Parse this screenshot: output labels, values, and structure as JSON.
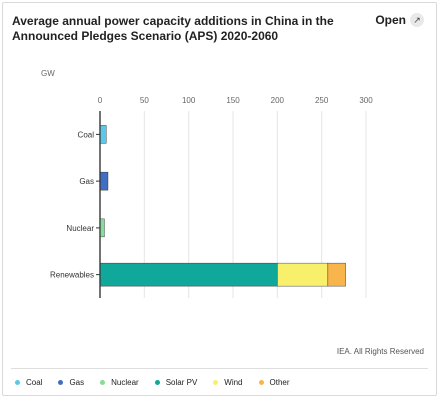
{
  "header": {
    "title": "Average annual power capacity additions in China in the Announced Pledges Scenario (APS) 2020-2060",
    "open_label": "Open",
    "open_icon": "external-link-icon"
  },
  "footer": {
    "credit": "IEA. All Rights Reserved"
  },
  "legend": [
    {
      "name": "Coal",
      "color": "#5bc8e8"
    },
    {
      "name": "Gas",
      "color": "#3f6fc2"
    },
    {
      "name": "Nuclear",
      "color": "#86dd9a"
    },
    {
      "name": "Solar PV",
      "color": "#10a89a"
    },
    {
      "name": "Wind",
      "color": "#f8ef6b"
    },
    {
      "name": "Other",
      "color": "#f7b54b"
    }
  ],
  "chart_data": {
    "type": "bar",
    "orientation": "horizontal",
    "stacked": true,
    "title": "Average annual power capacity additions in China in the Announced Pledges Scenario (APS) 2020-2060",
    "unit_label": "GW",
    "xlim": [
      0,
      300
    ],
    "xticks": [
      0,
      50,
      100,
      150,
      200,
      250,
      300
    ],
    "grid": true,
    "legend_position": "bottom",
    "categories": [
      "Coal",
      "Gas",
      "Nuclear",
      "Renewables"
    ],
    "series": [
      {
        "name": "Coal",
        "values": [
          7,
          0,
          0,
          0
        ],
        "color": "#5bc8e8"
      },
      {
        "name": "Gas",
        "values": [
          0,
          9,
          0,
          0
        ],
        "color": "#3f6fc2"
      },
      {
        "name": "Nuclear",
        "values": [
          0,
          0,
          5,
          0
        ],
        "color": "#86dd9a"
      },
      {
        "name": "Solar PV",
        "values": [
          0,
          0,
          0,
          200
        ],
        "color": "#10a89a"
      },
      {
        "name": "Wind",
        "values": [
          0,
          0,
          0,
          57
        ],
        "color": "#f8ef6b"
      },
      {
        "name": "Other",
        "values": [
          0,
          0,
          0,
          20
        ],
        "color": "#f7b54b"
      }
    ]
  }
}
